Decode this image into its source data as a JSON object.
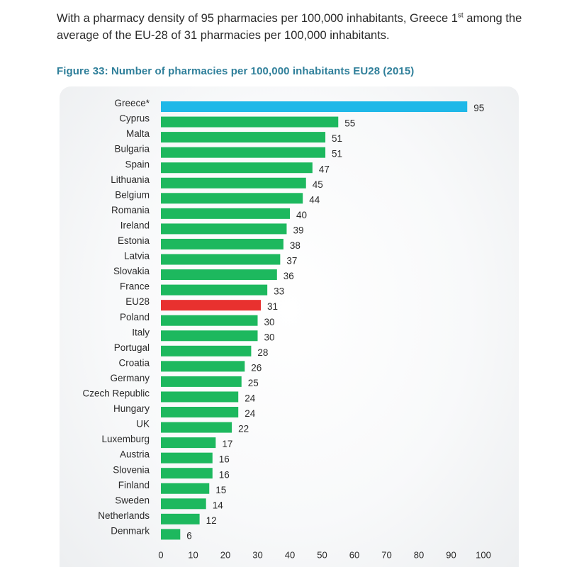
{
  "intro": {
    "text_before": "With a pharmacy density of 95 pharmacies per 100,000 inhabitants, Greece 1",
    "superscript": "st",
    "text_after": "  among the average of the EU-28 of 31 pharmacies per 100,000 inhabitants."
  },
  "colors": {
    "highlight": "#1fb8e8",
    "average": "#e8312f",
    "default": "#1db85e",
    "title": "#2f7f9a"
  },
  "chart_data": {
    "type": "bar",
    "orientation": "horizontal",
    "title": "Figure 33: Number of pharmacies per 100,000 inhabitants EU28 (2015)",
    "xlabel": "",
    "ylabel": "",
    "xlim": [
      0,
      100
    ],
    "xticks": [
      0,
      10,
      20,
      30,
      40,
      50,
      60,
      70,
      80,
      90,
      100
    ],
    "grid": false,
    "categories": [
      "Greece*",
      "Cyprus",
      "Malta",
      "Bulgaria",
      "Spain",
      "Lithuania",
      "Belgium",
      "Romania",
      "Ireland",
      "Estonia",
      "Latvia",
      "Slovakia",
      "France",
      "EU28",
      "Poland",
      "Italy",
      "Portugal",
      "Croatia",
      "Germany",
      "Czech Republic",
      "Hungary",
      "UK",
      "Luxemburg",
      "Austria",
      "Slovenia",
      "Finland",
      "Sweden",
      "Netherlands",
      "Denmark"
    ],
    "values": [
      95,
      55,
      51,
      51,
      47,
      45,
      44,
      40,
      39,
      38,
      37,
      36,
      33,
      31,
      30,
      30,
      28,
      26,
      25,
      24,
      24,
      22,
      17,
      16,
      16,
      15,
      14,
      12,
      6
    ],
    "highlight": [
      "Greece*"
    ],
    "average": [
      "EU28"
    ]
  }
}
